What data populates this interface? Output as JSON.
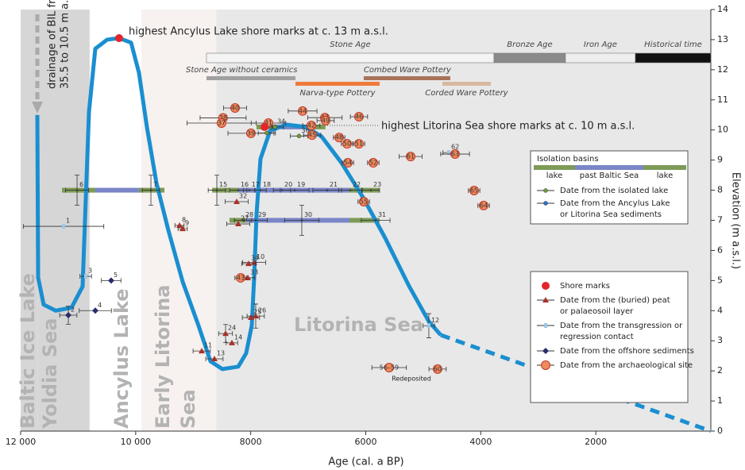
{
  "chart_data": {
    "type": "scatter",
    "x_label": "Age (cal. a BP)",
    "y_label": "Elevation (m a.s.l.)",
    "xlim": [
      12000,
      0
    ],
    "ylim": [
      0,
      14
    ],
    "xticks": [
      {
        "value": 12000,
        "label": "12 000"
      },
      {
        "value": 10000,
        "label": "10 000"
      },
      8000,
      6000,
      4000,
      2000
    ],
    "yticks": [
      0,
      1,
      2,
      3,
      4,
      5,
      6,
      7,
      8,
      9,
      10,
      11,
      12,
      13,
      14
    ],
    "annotations": {
      "ancylus_high": "highest Ancylus Lake shore marks at c. 13 m a.s.l.",
      "litorina_high": "highest Litorina Sea shore marks at c. 10 m a.s.l.",
      "drainage": [
        "drainage of BIL from",
        "35.5 to 10.5  m a.s.l."
      ],
      "redeposited": "Redeposited"
    },
    "eras": [
      {
        "lines": [
          "Baltic Ice Lake"
        ],
        "from": 12000,
        "to": 11700,
        "color": "#d6d6d6"
      },
      {
        "lines": [
          "Yoldia Sea"
        ],
        "from": 11700,
        "to": 10800,
        "color": "#d6d6d6"
      },
      {
        "lines": [
          "Ancylus Lake"
        ],
        "from": 10800,
        "to": 9900,
        "color": "#ffffff"
      },
      {
        "lines": [
          "Early Litorina",
          "Sea"
        ],
        "from": 9900,
        "to": 8600,
        "color": "#f7f1ef"
      },
      {
        "lines": [
          "Litorina Sea"
        ],
        "from": 8600,
        "to": 0,
        "color": "#e8e8e8"
      }
    ],
    "ages": [
      {
        "name": "Stone Age",
        "from": 8769,
        "to": 3770,
        "color": "#f4f4f4"
      },
      {
        "name": "Bronze Age",
        "from": 3770,
        "to": 2528,
        "color": "#8a8a8a"
      },
      {
        "name": "Iron Age",
        "from": 2528,
        "to": 1313,
        "color": "#eeeeee"
      },
      {
        "name": "Historical time",
        "from": 1313,
        "to": 0,
        "color": "#111111"
      }
    ],
    "cultures": [
      {
        "name": "Stone Age without ceramics",
        "from": 8769,
        "to": 7222,
        "color": "#a0a0a0"
      },
      {
        "name": "Narva-type Pottery",
        "from": 7222,
        "to": 5759,
        "color": "#ee7b3a"
      },
      {
        "name": "Combed Ware Pottery",
        "from": 6035,
        "to": 4530,
        "color": "#a8735a"
      },
      {
        "name": "Corded Ware Pottery",
        "from": 4668,
        "to": 3826,
        "color": "#d8b89e"
      }
    ],
    "curve": {
      "color": "#1a8fd0",
      "x": [
        11710,
        11696,
        11600,
        11392,
        11116,
        10923,
        10868,
        10812,
        10702,
        10495,
        10288,
        10080,
        9943,
        9805,
        9640,
        9432,
        9183,
        8907,
        8700,
        8493,
        8217,
        8080,
        7982,
        7940,
        7899,
        7830,
        7664,
        7388,
        7043,
        6767,
        6422,
        6035,
        5662,
        5248,
        4903,
        4696
      ],
      "values": [
        10.5,
        5.1,
        4.2,
        4.0,
        4.1,
        4.8,
        7.7,
        10.6,
        12.7,
        13.0,
        13.05,
        12.9,
        11.9,
        10.1,
        8.25,
        6.67,
        4.96,
        3.5,
        2.32,
        2.06,
        2.14,
        2.58,
        3.5,
        5.1,
        7.2,
        9.04,
        9.97,
        10.18,
        10.1,
        9.78,
        8.91,
        7.72,
        6.41,
        4.82,
        3.64,
        3.19
      ]
    },
    "curve_projection": {
      "color": "#1a8fd0",
      "dashed": true,
      "x": [
        4696,
        0
      ],
      "values": [
        3.19,
        0
      ]
    },
    "isolation_bars": [
      {
        "elev": 8,
        "edges": [
          11282,
          10702,
          9943,
          9500
        ]
      },
      {
        "elev": 8,
        "edges": [
          8672,
          8217,
          6283,
          5759
        ]
      },
      {
        "elev": 7,
        "edges": [
          8369,
          8079,
          6283,
          5759
        ]
      },
      {
        "elev": 10.1,
        "edges": [
          7899,
          7600,
          7000,
          6700
        ]
      }
    ],
    "marker_colors": {
      "shore": "#e4262b",
      "peat": "#a8322a",
      "contact": "#9cc8e8",
      "offshore": "#2a2d6b",
      "arch": "#ef8a5c",
      "lake": "#6f9d3c",
      "ancylus": "#2f6fcf",
      "basin": "#333333"
    },
    "points": [
      {
        "label": "1",
        "type": "contact",
        "age": 11254,
        "elev": 6.8,
        "xerr": 700
      },
      {
        "label": "2",
        "type": "offshore",
        "age": 11171,
        "elev": 3.85,
        "xerr": 150,
        "yerr": 0.3
      },
      {
        "label": "3",
        "type": "contact",
        "age": 10868,
        "elev": 5.14,
        "xerr": 100
      },
      {
        "label": "4",
        "type": "offshore",
        "age": 10702,
        "elev": 4.0,
        "xerr": 280
      },
      {
        "label": "5",
        "type": "offshore",
        "age": 10426,
        "elev": 5.0,
        "xerr": 170
      },
      {
        "label": "6",
        "type": "basin",
        "age": 11019,
        "elev": 8,
        "xerr": 200,
        "yerr": 0.5
      },
      {
        "label": "7",
        "type": "basin",
        "age": 9735,
        "elev": 8,
        "xerr": 150,
        "yerr": 0.5
      },
      {
        "label": "8",
        "type": "peat",
        "age": 9238,
        "elev": 6.83,
        "xerr": 80
      },
      {
        "label": "9",
        "type": "peat",
        "age": 9183,
        "elev": 6.72,
        "xerr": 80
      },
      {
        "label": "10",
        "type": "peat",
        "age": 7940,
        "elev": 5.6,
        "xerr": 200
      },
      {
        "label": "11",
        "type": "peat",
        "age": 8852,
        "elev": 2.66,
        "xerr": 150
      },
      {
        "label": "12",
        "type": "contact",
        "age": 4903,
        "elev": 3.5,
        "xerr": 100,
        "yerr": 0.4
      },
      {
        "label": "13",
        "type": "peat",
        "age": 8631,
        "elev": 2.4,
        "xerr": 150
      },
      {
        "label": "14",
        "type": "peat",
        "age": 8327,
        "elev": 2.93,
        "xerr": 100
      },
      {
        "label": "24",
        "type": "peat",
        "age": 8437,
        "elev": 3.24,
        "xerr": 120,
        "yerr": 0.3
      },
      {
        "label": "25",
        "type": "peat",
        "age": 7996,
        "elev": 3.77,
        "xerr": 150
      },
      {
        "label": "26",
        "type": "peat",
        "age": 7913,
        "elev": 3.82,
        "xerr": 150,
        "yerr": 0.4
      },
      {
        "label": "32",
        "type": "peat",
        "age": 8244,
        "elev": 7.62,
        "xerr": 200
      },
      {
        "label": "27",
        "type": "peat",
        "age": 8217,
        "elev": 6.88,
        "xerr": 200
      },
      {
        "label": "33",
        "type": "peat",
        "age": 8050,
        "elev": 5.09,
        "xerr": 120
      },
      {
        "label": "34",
        "type": "peat",
        "age": 8037,
        "elev": 5.56,
        "xerr": 120
      },
      {
        "label": "43",
        "type": "arch",
        "age": 8175,
        "elev": 5.09,
        "xerr": 100
      },
      {
        "label": "15",
        "type": "basin",
        "age": 8589,
        "elev": 8,
        "xerr": 150,
        "yerr": 0.5
      },
      {
        "label": "16",
        "type": "basin",
        "age": 8217,
        "elev": 8,
        "xerr": 150
      },
      {
        "label": "17",
        "type": "basin",
        "age": 8025,
        "elev": 8,
        "xerr": 100
      },
      {
        "label": "18",
        "type": "basin",
        "age": 7830,
        "elev": 8,
        "xerr": 100
      },
      {
        "label": "20",
        "type": "basin",
        "age": 7457,
        "elev": 8,
        "xerr": 150
      },
      {
        "label": "19",
        "type": "basin",
        "age": 7236,
        "elev": 8,
        "xerr": 250
      },
      {
        "label": "21",
        "type": "basin",
        "age": 6670,
        "elev": 8,
        "xerr": 250
      },
      {
        "label": "22",
        "type": "basin",
        "age": 6270,
        "elev": 8,
        "xerr": 200
      },
      {
        "label": "23",
        "type": "basin",
        "age": 5910,
        "elev": 8,
        "xerr": 150
      },
      {
        "label": "28",
        "type": "basin",
        "age": 8134,
        "elev": 7,
        "xerr": 150
      },
      {
        "label": "29",
        "type": "basin",
        "age": 7913,
        "elev": 7,
        "xerr": 200
      },
      {
        "label": "30",
        "type": "basin",
        "age": 7112,
        "elev": 7,
        "xerr": 300,
        "yerr": 0.5
      },
      {
        "label": "31",
        "type": "basin",
        "age": 5828,
        "elev": 7,
        "xerr": 250
      },
      {
        "label": "40",
        "type": "arch",
        "age": 8272,
        "elev": 10.73,
        "xerr": 200
      },
      {
        "label": "38",
        "type": "arch",
        "age": 8480,
        "elev": 10.4,
        "xerr": 400
      },
      {
        "label": "37",
        "type": "arch",
        "age": 8507,
        "elev": 10.23,
        "xerr": 600
      },
      {
        "label": "39",
        "type": "arch",
        "age": 7996,
        "elev": 9.89,
        "xerr": 400
      },
      {
        "label": "41",
        "type": "arch",
        "age": 7692,
        "elev": 10.23,
        "xerr": 300
      },
      {
        "label": "35",
        "type": "lake",
        "age": 7720,
        "elev": 9.9,
        "xerr": 150
      },
      {
        "label": "34",
        "type": "lake",
        "age": 7580,
        "elev": 10.1,
        "xerr": 150
      },
      {
        "label": "36",
        "type": "lake",
        "age": 7160,
        "elev": 9.8,
        "xerr": 150
      },
      {
        "label": "44",
        "type": "arch",
        "age": 7098,
        "elev": 10.63,
        "xerr": 250
      },
      {
        "label": "47",
        "type": "arch",
        "age": 6711,
        "elev": 10.41,
        "xerr": 300
      },
      {
        "label": "49",
        "type": "arch",
        "age": 6698,
        "elev": 10.31,
        "xerr": 150
      },
      {
        "label": "42",
        "type": "arch",
        "age": 6946,
        "elev": 10.15,
        "xerr": 150
      },
      {
        "label": "45",
        "type": "arch",
        "age": 6932,
        "elev": 9.83,
        "xerr": 150
      },
      {
        "label": "48",
        "type": "arch",
        "age": 6463,
        "elev": 9.75,
        "xerr": 100
      },
      {
        "label": "50",
        "type": "arch",
        "age": 6325,
        "elev": 9.54,
        "xerr": 100
      },
      {
        "label": "51",
        "type": "arch",
        "age": 6118,
        "elev": 9.54,
        "xerr": 100
      },
      {
        "label": "46",
        "type": "arch",
        "age": 6118,
        "elev": 10.44,
        "xerr": 150
      },
      {
        "label": "54",
        "type": "arch",
        "age": 6311,
        "elev": 8.91,
        "xerr": 100
      },
      {
        "label": "52",
        "type": "arch",
        "age": 5869,
        "elev": 8.91,
        "xerr": 100
      },
      {
        "label": "61",
        "type": "arch",
        "age": 5220,
        "elev": 9.12,
        "xerr": 200
      },
      {
        "label": "62",
        "type": "contact",
        "age": 4557,
        "elev": 9.25,
        "xerr": 100
      },
      {
        "label": "63",
        "type": "arch",
        "age": 4447,
        "elev": 9.2,
        "xerr": 250
      },
      {
        "label": "65",
        "type": "arch",
        "age": 4116,
        "elev": 7.99,
        "xerr": 100
      },
      {
        "label": "64",
        "type": "arch",
        "age": 3950,
        "elev": 7.49,
        "xerr": 100
      },
      {
        "label": "55",
        "type": "arch",
        "age": 6035,
        "elev": 7.62,
        "xerr": 100
      },
      {
        "label": "60",
        "type": "arch",
        "age": 4751,
        "elev": 2.06,
        "xerr": 150
      },
      {
        "label": "56–59",
        "type": "arch",
        "age": 5593,
        "elev": 2.11,
        "xerr": 300
      }
    ],
    "shore_marks": [
      {
        "age": 10288,
        "elev": 13.05
      },
      {
        "age": 7760,
        "elev": 10.1
      }
    ],
    "legend_basins": {
      "title": "Isolation basins",
      "bar_labels": [
        "lake",
        "past Baltic Sea",
        "lake"
      ],
      "lake_color": "#7d9b56",
      "sea_color": "#7a86c8",
      "items": [
        {
          "type": "lake",
          "lines": [
            "Date from the isolated lake"
          ]
        },
        {
          "type": "ancylus",
          "lines": [
            "Date from the Ancylus Lake",
            "or Litorina Sea sediments"
          ]
        }
      ]
    },
    "legend_markers": {
      "items": [
        {
          "type": "shore",
          "lines": [
            "Shore marks"
          ]
        },
        {
          "type": "peat",
          "lines": [
            "Date from the (buried) peat",
            "or palaeosoil layer"
          ]
        },
        {
          "type": "contact",
          "lines": [
            "Date from the transgression or",
            "regression contact"
          ]
        },
        {
          "type": "offshore",
          "lines": [
            "Date from the offshore sediments"
          ]
        },
        {
          "type": "arch",
          "lines": [
            "Date from the archaeological site"
          ]
        }
      ]
    }
  }
}
